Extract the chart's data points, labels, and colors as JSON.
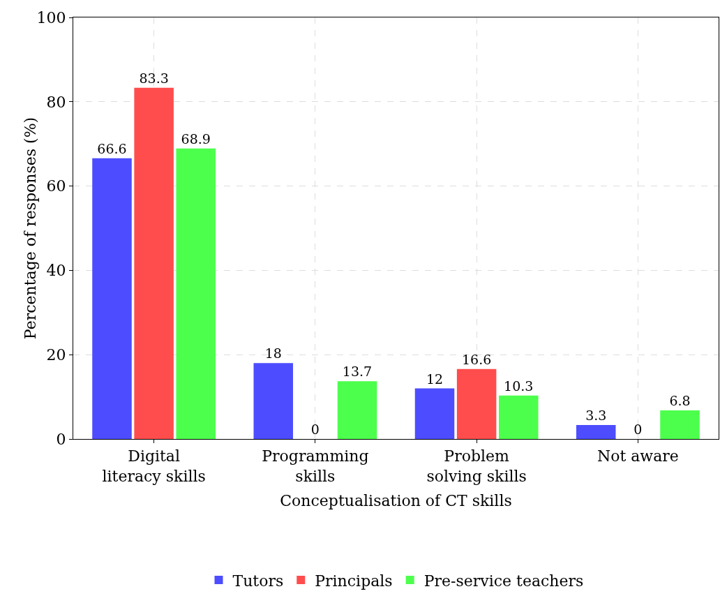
{
  "chart_data": {
    "type": "bar",
    "xlabel": "Conceptualisation of CT skills",
    "ylabel": "Percentage of responses (%)",
    "categories": [
      "Digital literacy skills",
      "Programming skills",
      "Problem solving skills",
      "Not aware"
    ],
    "series": [
      {
        "name": "Tutors",
        "color": "#4d4dff",
        "values": [
          66.6,
          18,
          12,
          3.3
        ]
      },
      {
        "name": "Principals",
        "color": "#ff4d4d",
        "values": [
          83.3,
          0,
          16.6,
          0
        ]
      },
      {
        "name": "Pre-service teachers",
        "color": "#4dff4d",
        "values": [
          68.9,
          13.7,
          10.3,
          6.8
        ]
      }
    ],
    "ylim": [
      0,
      100
    ],
    "yticks": [
      0,
      20,
      40,
      60,
      80,
      100
    ],
    "grid": true,
    "legend": "bottom",
    "data_labels": true
  }
}
